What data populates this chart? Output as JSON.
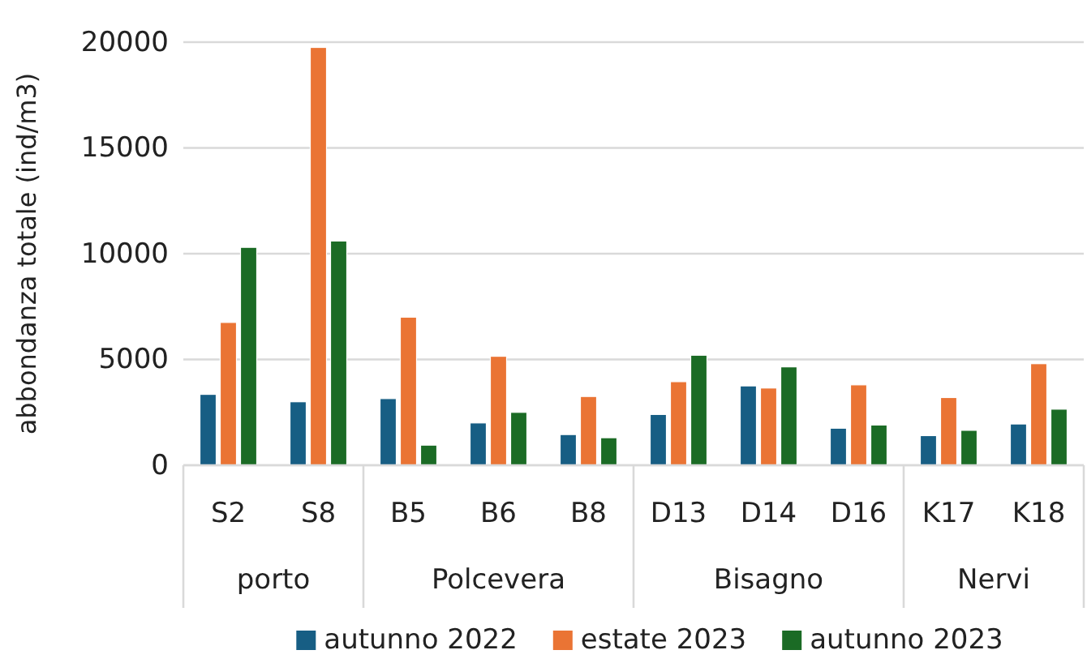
{
  "chart_data": {
    "type": "bar",
    "ylabel": "abbondanza totale (ind/m3)",
    "categories": [
      "S2",
      "S8",
      "B5",
      "B6",
      "B8",
      "D13",
      "D14",
      "D16",
      "K17",
      "K18"
    ],
    "series": [
      {
        "name": "autunno 2022",
        "color": "#175e84",
        "values": [
          3350,
          3000,
          3150,
          2000,
          1450,
          2400,
          3750,
          1750,
          1400,
          1950
        ]
      },
      {
        "name": "estate 2023",
        "color": "#ea7434",
        "values": [
          6750,
          19750,
          7000,
          5150,
          3250,
          3950,
          3650,
          3800,
          3200,
          4800
        ]
      },
      {
        "name": "autunno 2023",
        "color": "#1b6b25",
        "values": [
          10300,
          10600,
          950,
          2500,
          1300,
          5200,
          4650,
          1900,
          1650,
          2650
        ]
      }
    ],
    "annotations": [
      "porto",
      "Polcevera",
      "Bisagno",
      "Nervi"
    ],
    "ylim": [
      0,
      20000
    ],
    "yticks": [
      0,
      5000,
      10000,
      15000,
      20000
    ],
    "grid": "y",
    "legend": "bottom"
  }
}
